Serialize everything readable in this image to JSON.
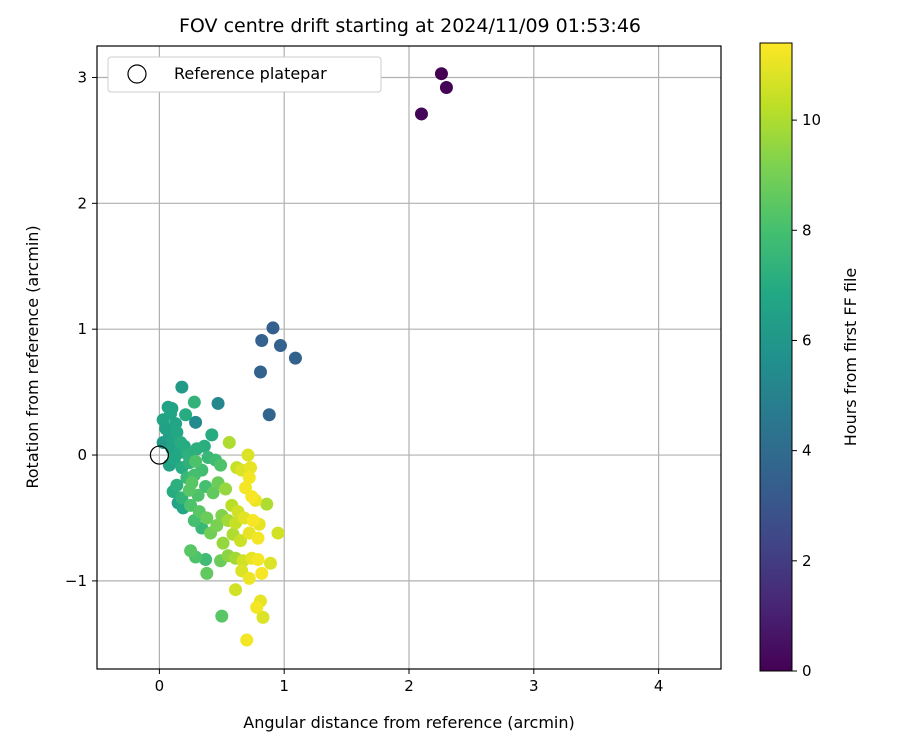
{
  "chart_data": {
    "type": "scatter",
    "title": "FOV centre drift starting at 2024/11/09 01:53:46",
    "xlabel": "Angular distance from reference (arcmin)",
    "ylabel": "Rotation from reference (arcmin)",
    "xlim": [
      -0.5,
      4.5
    ],
    "ylim": [
      -1.7,
      3.25
    ],
    "xticks": [
      0,
      1,
      2,
      3,
      4
    ],
    "yticks": [
      -1,
      0,
      1,
      2,
      3
    ],
    "grid": true,
    "legend": {
      "placement": "top-left",
      "entries": [
        "Reference platepar"
      ]
    },
    "reference_point": {
      "x": 0,
      "y": 0,
      "marker": "open-circle",
      "label": "Reference platepar"
    },
    "colorbar": {
      "label": "Hours from first FF file",
      "min": 0,
      "max": 11.4,
      "ticks": [
        0,
        2,
        4,
        6,
        8,
        10
      ],
      "colormap": "viridis"
    },
    "points": [
      {
        "x": 2.26,
        "y": 3.03,
        "c": 0.0
      },
      {
        "x": 2.3,
        "y": 2.92,
        "c": 0.05
      },
      {
        "x": 2.1,
        "y": 2.71,
        "c": 0.1
      },
      {
        "x": 0.91,
        "y": 1.01,
        "c": 3.4
      },
      {
        "x": 0.97,
        "y": 0.87,
        "c": 3.5
      },
      {
        "x": 0.82,
        "y": 0.91,
        "c": 3.5
      },
      {
        "x": 1.09,
        "y": 0.77,
        "c": 3.6
      },
      {
        "x": 0.81,
        "y": 0.66,
        "c": 3.6
      },
      {
        "x": 0.88,
        "y": 0.32,
        "c": 3.7
      },
      {
        "x": 0.47,
        "y": 0.41,
        "c": 5.3
      },
      {
        "x": 0.29,
        "y": 0.26,
        "c": 5.4
      },
      {
        "x": 0.18,
        "y": 0.54,
        "c": 6.2
      },
      {
        "x": 0.07,
        "y": 0.38,
        "c": 6.5
      },
      {
        "x": 0.1,
        "y": 0.37,
        "c": 6.6
      },
      {
        "x": 0.03,
        "y": 0.28,
        "c": 6.6
      },
      {
        "x": 0.09,
        "y": 0.33,
        "c": 6.7
      },
      {
        "x": 0.13,
        "y": 0.25,
        "c": 6.7
      },
      {
        "x": 0.21,
        "y": 0.32,
        "c": 7.0
      },
      {
        "x": 0.28,
        "y": 0.42,
        "c": 7.4
      },
      {
        "x": 0.05,
        "y": 0.21,
        "c": 6.5
      },
      {
        "x": 0.08,
        "y": 0.15,
        "c": 6.4
      },
      {
        "x": 0.11,
        "y": 0.11,
        "c": 6.6
      },
      {
        "x": 0.14,
        "y": 0.18,
        "c": 6.8
      },
      {
        "x": 0.17,
        "y": 0.1,
        "c": 7.0
      },
      {
        "x": 0.03,
        "y": 0.1,
        "c": 6.2
      },
      {
        "x": 0.1,
        "y": 0.05,
        "c": 6.6
      },
      {
        "x": 0.16,
        "y": 0.02,
        "c": 6.8
      },
      {
        "x": 0.2,
        "y": 0.07,
        "c": 7.0
      },
      {
        "x": 0.23,
        "y": 0.0,
        "c": 7.2
      },
      {
        "x": 0.12,
        "y": -0.03,
        "c": 6.8
      },
      {
        "x": 0.08,
        "y": -0.08,
        "c": 6.6
      },
      {
        "x": 0.18,
        "y": -0.1,
        "c": 7.0
      },
      {
        "x": 0.24,
        "y": -0.06,
        "c": 7.3
      },
      {
        "x": 0.3,
        "y": 0.05,
        "c": 7.2
      },
      {
        "x": 0.36,
        "y": 0.07,
        "c": 7.1
      },
      {
        "x": 0.42,
        "y": 0.16,
        "c": 7.0
      },
      {
        "x": 0.39,
        "y": -0.02,
        "c": 7.6
      },
      {
        "x": 0.45,
        "y": -0.04,
        "c": 7.8
      },
      {
        "x": 0.49,
        "y": -0.08,
        "c": 8.2
      },
      {
        "x": 0.34,
        "y": -0.12,
        "c": 7.9
      },
      {
        "x": 0.28,
        "y": -0.16,
        "c": 8.0
      },
      {
        "x": 0.22,
        "y": -0.18,
        "c": 7.6
      },
      {
        "x": 0.14,
        "y": -0.24,
        "c": 7.2
      },
      {
        "x": 0.11,
        "y": -0.29,
        "c": 7.0
      },
      {
        "x": 0.18,
        "y": -0.34,
        "c": 7.4
      },
      {
        "x": 0.24,
        "y": -0.28,
        "c": 8.4
      },
      {
        "x": 0.31,
        "y": -0.32,
        "c": 8.2
      },
      {
        "x": 0.37,
        "y": -0.25,
        "c": 8.0
      },
      {
        "x": 0.43,
        "y": -0.3,
        "c": 8.6
      },
      {
        "x": 0.47,
        "y": -0.22,
        "c": 8.8
      },
      {
        "x": 0.53,
        "y": -0.27,
        "c": 9.6
      },
      {
        "x": 0.25,
        "y": -0.4,
        "c": 8.2
      },
      {
        "x": 0.32,
        "y": -0.45,
        "c": 8.4
      },
      {
        "x": 0.38,
        "y": -0.5,
        "c": 8.8
      },
      {
        "x": 0.28,
        "y": -0.52,
        "c": 8.0
      },
      {
        "x": 0.34,
        "y": -0.58,
        "c": 7.6
      },
      {
        "x": 0.41,
        "y": -0.62,
        "c": 8.9
      },
      {
        "x": 0.46,
        "y": -0.56,
        "c": 9.1
      },
      {
        "x": 0.5,
        "y": -0.48,
        "c": 9.2
      },
      {
        "x": 0.19,
        "y": -0.42,
        "c": 6.8
      },
      {
        "x": 0.15,
        "y": -0.38,
        "c": 6.6
      },
      {
        "x": 0.29,
        "y": -0.05,
        "c": 8.2
      },
      {
        "x": 0.26,
        "y": -0.22,
        "c": 8.4
      },
      {
        "x": 0.56,
        "y": 0.1,
        "c": 10.0
      },
      {
        "x": 0.62,
        "y": -0.1,
        "c": 10.4
      },
      {
        "x": 0.66,
        "y": -0.12,
        "c": 10.8
      },
      {
        "x": 0.71,
        "y": 0.0,
        "c": 10.8
      },
      {
        "x": 0.73,
        "y": -0.1,
        "c": 11.0
      },
      {
        "x": 0.72,
        "y": -0.18,
        "c": 11.2
      },
      {
        "x": 0.69,
        "y": -0.26,
        "c": 11.2
      },
      {
        "x": 0.74,
        "y": -0.33,
        "c": 11.3
      },
      {
        "x": 0.77,
        "y": -0.36,
        "c": 11.1
      },
      {
        "x": 0.86,
        "y": -0.39,
        "c": 10.0
      },
      {
        "x": 0.58,
        "y": -0.4,
        "c": 10.2
      },
      {
        "x": 0.63,
        "y": -0.45,
        "c": 10.6
      },
      {
        "x": 0.55,
        "y": -0.52,
        "c": 9.8
      },
      {
        "x": 0.61,
        "y": -0.54,
        "c": 10.4
      },
      {
        "x": 0.68,
        "y": -0.5,
        "c": 10.9
      },
      {
        "x": 0.75,
        "y": -0.52,
        "c": 11.3
      },
      {
        "x": 0.8,
        "y": -0.55,
        "c": 11.0
      },
      {
        "x": 0.59,
        "y": -0.63,
        "c": 10.0
      },
      {
        "x": 0.65,
        "y": -0.68,
        "c": 10.5
      },
      {
        "x": 0.72,
        "y": -0.62,
        "c": 11.0
      },
      {
        "x": 0.79,
        "y": -0.66,
        "c": 11.2
      },
      {
        "x": 0.95,
        "y": -0.62,
        "c": 10.6
      },
      {
        "x": 0.51,
        "y": -0.7,
        "c": 9.6
      },
      {
        "x": 0.55,
        "y": -0.8,
        "c": 9.4
      },
      {
        "x": 0.61,
        "y": -0.82,
        "c": 9.8
      },
      {
        "x": 0.67,
        "y": -0.84,
        "c": 10.6
      },
      {
        "x": 0.74,
        "y": -0.82,
        "c": 11.0
      },
      {
        "x": 0.79,
        "y": -0.83,
        "c": 11.2
      },
      {
        "x": 0.89,
        "y": -0.86,
        "c": 10.8
      },
      {
        "x": 0.66,
        "y": -0.92,
        "c": 10.8
      },
      {
        "x": 0.82,
        "y": -0.94,
        "c": 11.3
      },
      {
        "x": 0.72,
        "y": -0.98,
        "c": 11.1
      },
      {
        "x": 0.49,
        "y": -0.84,
        "c": 8.8
      },
      {
        "x": 0.38,
        "y": -0.94,
        "c": 8.6
      },
      {
        "x": 0.29,
        "y": -0.81,
        "c": 8.2
      },
      {
        "x": 0.25,
        "y": -0.76,
        "c": 8.4
      },
      {
        "x": 0.37,
        "y": -0.83,
        "c": 7.8
      },
      {
        "x": 0.61,
        "y": -1.07,
        "c": 10.6
      },
      {
        "x": 0.81,
        "y": -1.16,
        "c": 11.0
      },
      {
        "x": 0.78,
        "y": -1.21,
        "c": 11.2
      },
      {
        "x": 0.83,
        "y": -1.29,
        "c": 10.8
      },
      {
        "x": 0.5,
        "y": -1.28,
        "c": 8.4
      },
      {
        "x": 0.7,
        "y": -1.47,
        "c": 11.2
      }
    ]
  }
}
